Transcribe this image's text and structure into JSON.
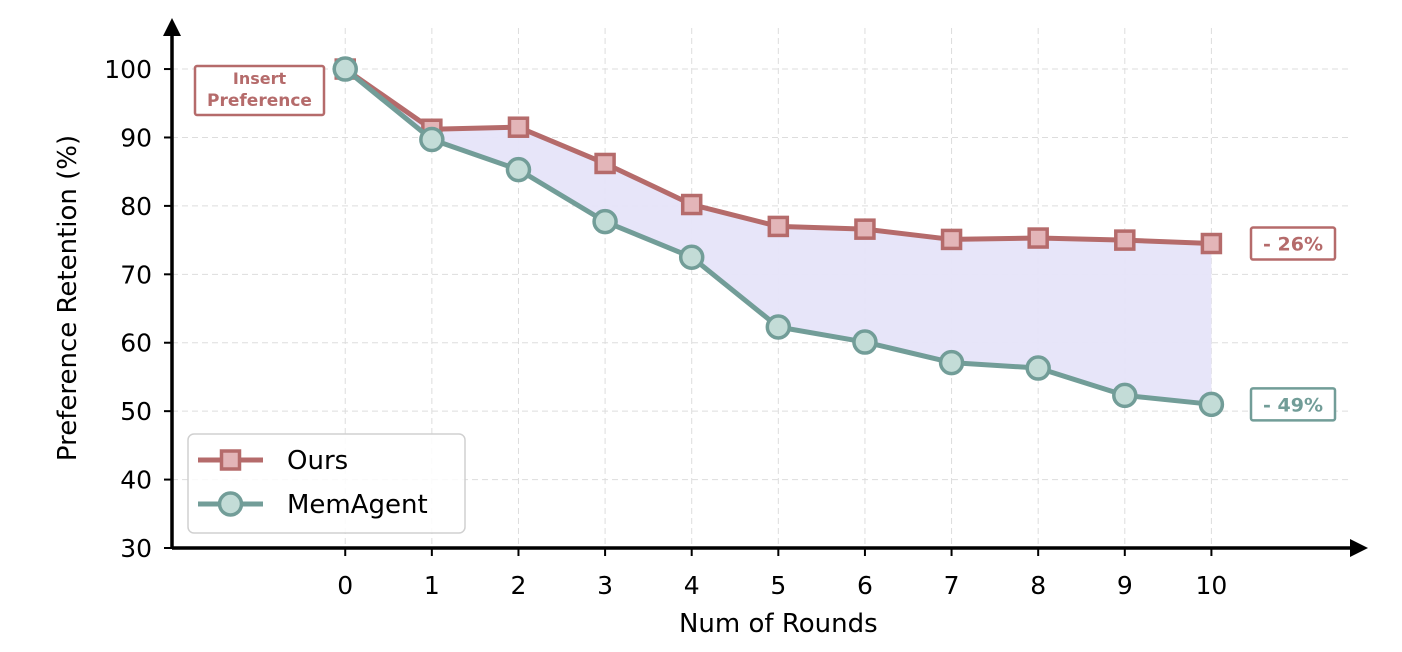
{
  "chart_data": {
    "type": "line",
    "title": "",
    "xlabel": "Num of Rounds",
    "ylabel": "Preference Retention (%)",
    "x": [
      0,
      1,
      2,
      3,
      4,
      5,
      6,
      7,
      8,
      9,
      10
    ],
    "xticks": [
      "0",
      "1",
      "2",
      "3",
      "4",
      "5",
      "6",
      "7",
      "8",
      "9",
      "10"
    ],
    "yticks": [
      "30",
      "40",
      "50",
      "60",
      "70",
      "80",
      "90",
      "100"
    ],
    "ylim": [
      30,
      106
    ],
    "xlim": [
      -2,
      11.6
    ],
    "grid": true,
    "legend_position": "lower-left",
    "fill_between_color": "#e6e4f9",
    "series": [
      {
        "name": "Ours",
        "marker": "square",
        "color": "#b56b6b",
        "marker_fill": "#e3b5b8",
        "values": [
          100,
          91.2,
          91.5,
          86.2,
          80.2,
          77.0,
          76.6,
          75.1,
          75.3,
          75.0,
          74.5
        ]
      },
      {
        "name": "MemAgent",
        "marker": "circle",
        "color": "#729d98",
        "marker_fill": "#c3dcd7",
        "values": [
          100,
          89.7,
          85.3,
          77.7,
          72.5,
          62.3,
          60.1,
          57.1,
          56.3,
          52.3,
          51.0
        ]
      }
    ],
    "annotations": [
      {
        "text_lines": [
          "Insert",
          "Preference"
        ],
        "color": "#b56b6b",
        "position": "left of first point"
      },
      {
        "text": "- 26%",
        "color": "#b56b6b",
        "series": "Ours",
        "position": "right of last point"
      },
      {
        "text": "- 49%",
        "color": "#729d98",
        "series": "MemAgent",
        "position": "right of last point"
      }
    ]
  }
}
